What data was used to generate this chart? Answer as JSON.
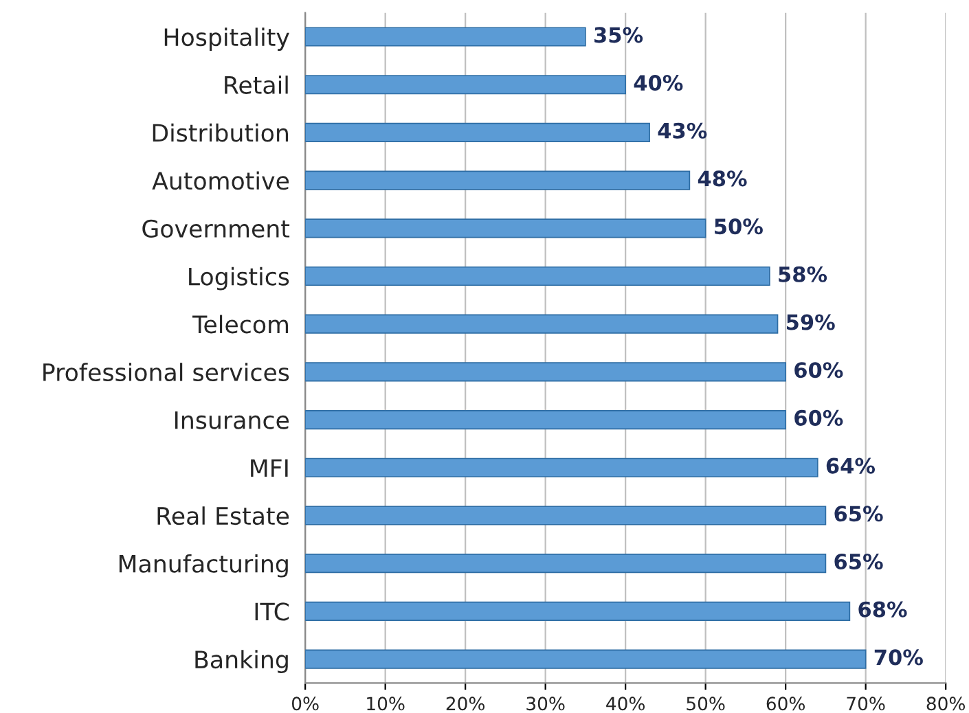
{
  "chart_data": {
    "type": "bar",
    "orientation": "horizontal",
    "categories": [
      "Hospitality",
      "Retail",
      "Distribution",
      "Automotive",
      "Government",
      "Logistics",
      "Telecom",
      "Professional services",
      "Insurance",
      "MFI",
      "Real Estate",
      "Manufacturing",
      "ITC",
      "Banking"
    ],
    "values": [
      35,
      40,
      43,
      48,
      50,
      58,
      59,
      60,
      60,
      64,
      65,
      65,
      68,
      70
    ],
    "value_labels": [
      "35%",
      "40%",
      "43%",
      "48%",
      "50%",
      "58%",
      "59%",
      "60%",
      "60%",
      "64%",
      "65%",
      "65%",
      "68%",
      "70%"
    ],
    "color": "#5b9bd5",
    "xlim": [
      0,
      80
    ],
    "xticks": [
      {
        "value": 0,
        "label": "0%"
      },
      {
        "value": 10,
        "label": "10%"
      },
      {
        "value": 20,
        "label": "20%"
      },
      {
        "value": 30,
        "label": "30%"
      },
      {
        "value": 40,
        "label": "40%"
      },
      {
        "value": 50,
        "label": "50%"
      },
      {
        "value": 60,
        "label": "60%"
      },
      {
        "value": 70,
        "label": "70%"
      },
      {
        "value": 80,
        "label": "80%"
      }
    ],
    "grid": "x",
    "legend": false
  }
}
